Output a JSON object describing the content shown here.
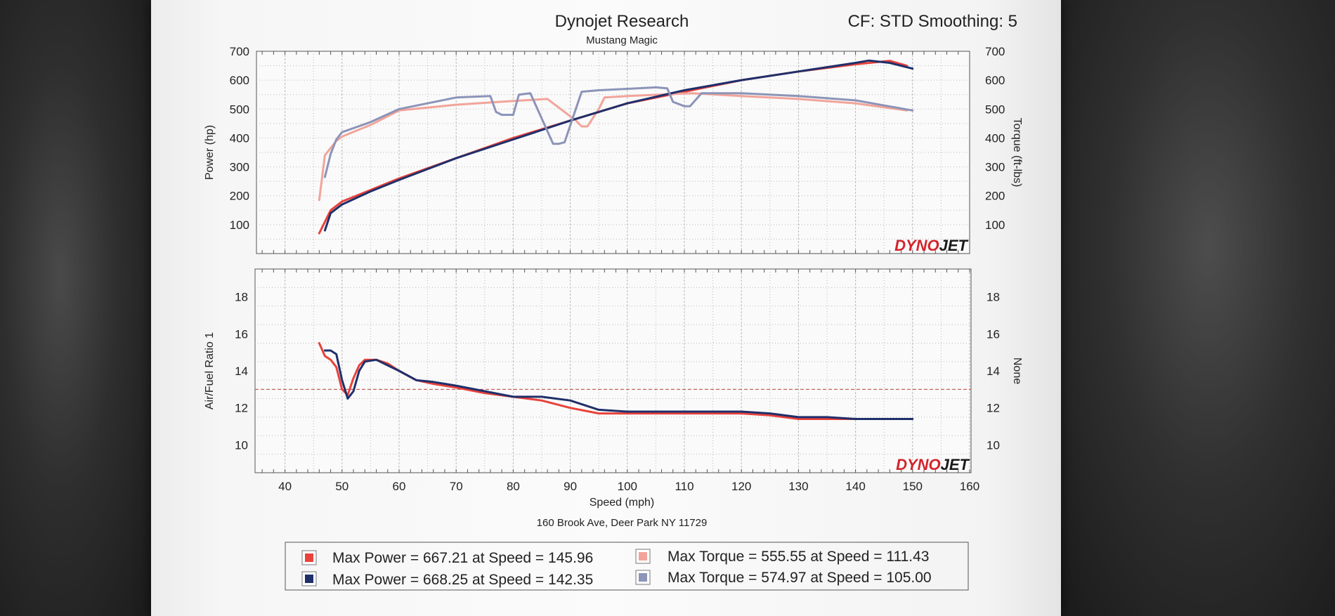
{
  "header": {
    "title": "Dynojet Research",
    "subtitle": "Mustang Magic",
    "settings": "CF: STD Smoothing: 5",
    "address": "160 Brook Ave, Deer Park NY 11729"
  },
  "brand": {
    "logo_text_1": "DYNO",
    "logo_text_2": "JET"
  },
  "colors": {
    "run1": "#e8423a",
    "run2": "#1f2f6b",
    "run1_light": "#f2a49a",
    "run2_light": "#8c94b8",
    "grid": "#b9b9b9",
    "ref_line": "#c46060"
  },
  "legend": {
    "rows": [
      {
        "color": "#e8423a",
        "text": "Max Power = 667.21 at Speed = 145.96"
      },
      {
        "color": "#f2a49a",
        "text": "Max Torque = 555.55 at Speed = 111.43"
      },
      {
        "color": "#1f2f6b",
        "text": "Max Power = 668.25 at Speed = 142.35"
      },
      {
        "color": "#8c94b8",
        "text": "Max Torque = 574.97 at Speed = 105.00"
      }
    ]
  },
  "chart_data": [
    {
      "type": "line",
      "ylabel": "Power (hp)",
      "y2label": "Torque (ft-lbs)",
      "xlim": [
        35,
        160
      ],
      "ylim": [
        0,
        700
      ],
      "y2lim": [
        0,
        700
      ],
      "yticks": [
        100,
        200,
        300,
        400,
        500,
        600,
        700
      ],
      "y2ticks": [
        100,
        200,
        300,
        400,
        500,
        600,
        700
      ],
      "grid": true,
      "series": [
        {
          "color": "#e8423a",
          "axis": "power",
          "x": [
            46,
            48,
            50,
            55,
            60,
            70,
            80,
            90,
            100,
            110,
            120,
            130,
            140,
            146,
            149
          ],
          "y": [
            70,
            150,
            180,
            220,
            260,
            330,
            400,
            460,
            520,
            560,
            600,
            630,
            655,
            667,
            650
          ]
        },
        {
          "color": "#f2a49a",
          "axis": "torque",
          "x": [
            46,
            47,
            49,
            50,
            55,
            60,
            70,
            80,
            86,
            91,
            92,
            93,
            95,
            96,
            100,
            110,
            111.43,
            120,
            130,
            140,
            149
          ],
          "y": [
            185,
            340,
            390,
            405,
            445,
            495,
            515,
            528,
            535,
            460,
            440,
            440,
            500,
            540,
            545,
            554,
            555,
            545,
            535,
            520,
            495
          ]
        },
        {
          "color": "#1f2f6b",
          "axis": "power",
          "x": [
            47,
            48,
            50,
            55,
            60,
            70,
            80,
            90,
            100,
            110,
            120,
            130,
            140,
            142.35,
            146,
            150
          ],
          "y": [
            80,
            140,
            170,
            215,
            255,
            330,
            395,
            460,
            520,
            565,
            600,
            630,
            660,
            668,
            660,
            640
          ]
        },
        {
          "color": "#8c94b8",
          "axis": "torque",
          "x": [
            47,
            48,
            49,
            50,
            55,
            60,
            70,
            76,
            77,
            78,
            79,
            80,
            81,
            83,
            87,
            88,
            89,
            92,
            95,
            100,
            105,
            107,
            108,
            110,
            111,
            113,
            120,
            130,
            140,
            150
          ],
          "y": [
            265,
            345,
            395,
            420,
            455,
            500,
            540,
            545,
            490,
            480,
            480,
            480,
            550,
            555,
            380,
            380,
            385,
            560,
            565,
            570,
            575,
            572,
            525,
            510,
            510,
            555,
            555,
            545,
            530,
            495
          ]
        }
      ]
    },
    {
      "type": "line",
      "ylabel": "Air/Fuel Ratio 1",
      "y2label": "None",
      "xlabel": "Speed (mph)",
      "xlim": [
        35,
        160
      ],
      "ylim": [
        8.5,
        19.5
      ],
      "y2lim": [
        8.5,
        19.5
      ],
      "xticks": [
        40,
        50,
        60,
        70,
        80,
        90,
        100,
        110,
        120,
        130,
        140,
        150,
        160
      ],
      "yticks": [
        10,
        12,
        14,
        16,
        18
      ],
      "y2ticks": [
        10,
        12,
        14,
        16,
        18
      ],
      "reference_line": 13,
      "grid": true,
      "series": [
        {
          "color": "#e8423a",
          "x": [
            46,
            47,
            48,
            49,
            50,
            51,
            52,
            53,
            54,
            56,
            58,
            60,
            63,
            66,
            70,
            75,
            80,
            85,
            90,
            95,
            100,
            110,
            120,
            125,
            130,
            135,
            140,
            145,
            148
          ],
          "y": [
            15.5,
            14.8,
            14.6,
            14.2,
            13.0,
            12.7,
            13.6,
            14.3,
            14.6,
            14.6,
            14.4,
            14.0,
            13.5,
            13.3,
            13.1,
            12.8,
            12.6,
            12.4,
            12.0,
            11.7,
            11.7,
            11.7,
            11.7,
            11.6,
            11.4,
            11.4,
            11.4,
            11.4,
            11.4
          ]
        },
        {
          "color": "#1f2f6b",
          "x": [
            47,
            48,
            49,
            50,
            51,
            52,
            53,
            54,
            56,
            58,
            60,
            63,
            66,
            70,
            75,
            80,
            85,
            90,
            95,
            100,
            110,
            120,
            125,
            130,
            135,
            140,
            145,
            150
          ],
          "y": [
            15.1,
            15.1,
            14.9,
            13.5,
            12.5,
            12.9,
            14.0,
            14.5,
            14.6,
            14.3,
            14.0,
            13.5,
            13.4,
            13.2,
            12.9,
            12.6,
            12.6,
            12.4,
            11.9,
            11.8,
            11.8,
            11.8,
            11.7,
            11.5,
            11.5,
            11.4,
            11.4,
            11.4
          ]
        }
      ]
    }
  ]
}
